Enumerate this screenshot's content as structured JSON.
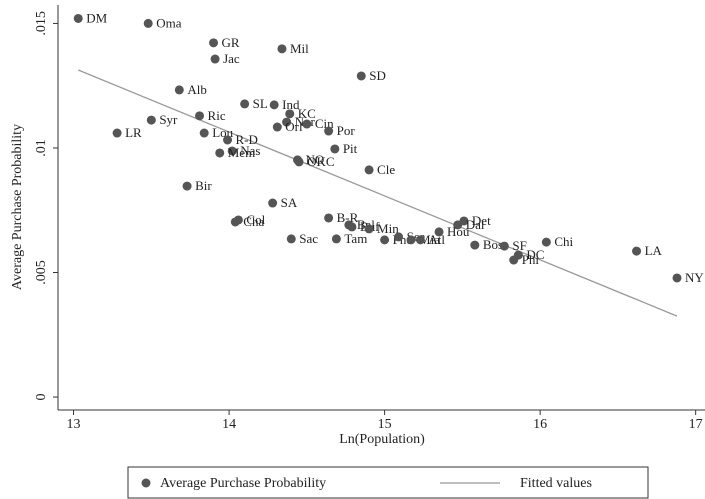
{
  "chart_data": {
    "type": "scatter",
    "xlabel": "Ln(Population)",
    "ylabel": "Average Purchase Probability",
    "xlim": [
      12.9,
      17.06
    ],
    "ylim": [
      -0.00052,
      0.01574
    ],
    "xticks": [
      13,
      14,
      15,
      16,
      17
    ],
    "yticks": [
      {
        "value": 0,
        "label": "0"
      },
      {
        "value": 0.005,
        "label": ".005"
      },
      {
        "value": 0.01,
        "label": ".01"
      },
      {
        "value": 0.015,
        "label": ".015"
      }
    ],
    "series": [
      {
        "name": "Average Purchase Probability",
        "color": "#555555",
        "labels": [
          "DM",
          "Oma",
          "GR",
          "Jac",
          "Mil",
          "SD",
          "Alb",
          "SL",
          "Ind",
          "KC",
          "Ric",
          "Syr",
          "Nor",
          "Cin",
          "Orl",
          "Por",
          "LR",
          "Lou",
          "R-D",
          "Pit",
          "Nas",
          "Mem",
          "NO",
          "OKC",
          "Cle",
          "Bir",
          "SA",
          "B-R",
          "Col",
          "Cha",
          "Det",
          "Dal",
          "Bal",
          "Buf",
          "Min",
          "Hou",
          "Sac",
          "Tam",
          "Pho",
          "Sea",
          "Mia",
          "Atl",
          "Bos",
          "SF",
          "Chi",
          "DC",
          "Phi",
          "LA",
          "NY"
        ],
        "x": [
          13.03,
          13.48,
          13.9,
          13.91,
          14.34,
          14.85,
          13.68,
          14.1,
          14.29,
          14.39,
          13.81,
          13.5,
          14.37,
          14.5,
          14.31,
          14.64,
          13.28,
          13.84,
          13.99,
          14.68,
          14.02,
          13.94,
          14.44,
          14.45,
          14.9,
          13.73,
          14.28,
          14.64,
          14.06,
          14.04,
          15.51,
          15.47,
          14.77,
          14.79,
          14.9,
          15.35,
          14.4,
          14.69,
          15.0,
          15.09,
          15.17,
          15.23,
          15.58,
          15.77,
          16.04,
          15.86,
          15.83,
          16.62,
          16.88
        ],
        "values": [
          0.0152,
          0.015,
          0.01422,
          0.01357,
          0.01398,
          0.01289,
          0.01233,
          0.01177,
          0.01173,
          0.01137,
          0.01129,
          0.01112,
          0.01104,
          0.01096,
          0.01084,
          0.01068,
          0.0106,
          0.0106,
          0.01032,
          0.00996,
          0.00988,
          0.0098,
          0.00952,
          0.00944,
          0.00912,
          0.00847,
          0.00779,
          0.00719,
          0.00711,
          0.00703,
          0.00707,
          0.00691,
          0.00691,
          0.00683,
          0.00675,
          0.00663,
          0.00635,
          0.00635,
          0.00631,
          0.00643,
          0.00631,
          0.00631,
          0.0061,
          0.00606,
          0.00622,
          0.0057,
          0.0055,
          0.00586,
          0.00478
        ]
      },
      {
        "name": "Fitted values",
        "color": "#999999",
        "x": [
          13.03,
          16.88
        ],
        "values": [
          0.01313,
          0.00325
        ]
      }
    ]
  }
}
